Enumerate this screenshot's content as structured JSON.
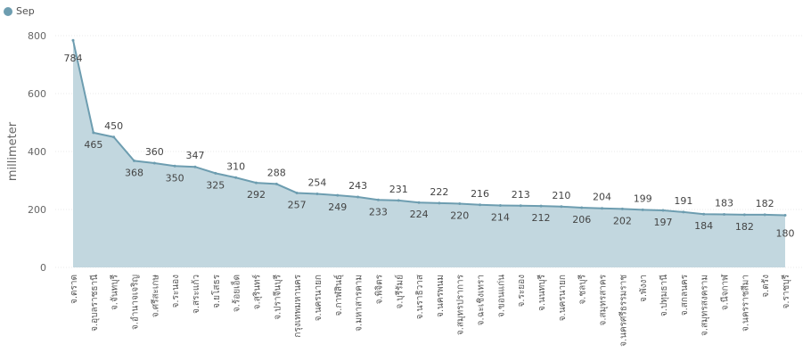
{
  "chart_data": {
    "type": "area",
    "ylabel": "millimeter",
    "ylim": [
      0,
      800
    ],
    "yticks": [
      0,
      200,
      400,
      600,
      800
    ],
    "grid": true,
    "legend_position": "top-left",
    "series": [
      {
        "name": "Sep",
        "color": "#6d9db0",
        "fill": "#c2d7df",
        "values": [
          784,
          465,
          450,
          368,
          360,
          350,
          347,
          325,
          310,
          292,
          288,
          257,
          254,
          249,
          243,
          233,
          231,
          224,
          222,
          220,
          216,
          214,
          213,
          212,
          210,
          206,
          204,
          202,
          199,
          197,
          191,
          184,
          183,
          182,
          182,
          180
        ]
      }
    ],
    "categories": [
      "จ.ตราด",
      "จ.อุบลราชธานี",
      "จ.จันทบุรี",
      "จ.อำนาจเจริญ",
      "จ.ศรีสะเกษ",
      "จ.ระนอง",
      "จ.สระแก้ว",
      "จ.ยโสธร",
      "จ.ร้อยเอ็ด",
      "จ.สุรินทร์",
      "จ.ปราจีนบุรี",
      "กรุงเทพมหานคร",
      "จ.นครนายก",
      "จ.กาฬสินธุ์",
      "จ.มหาสารคาม",
      "จ.พิจิตร",
      "จ.บุรีรัมย์",
      "จ.นราธิวาส",
      "จ.นครพนม",
      "จ.สมุทรปราการ",
      "จ.ฉะเชิงเทรา",
      "จ.ขอนแก่น",
      "จ.ระยอง",
      "จ.นนทบุรี",
      "จ.นครนายก",
      "จ.ชลบุรี",
      "จ.สมุทรสาคร",
      "จ.นครศรีธรรมราช",
      "จ.พังงา",
      "จ.ปทุมธานี",
      "จ.สกลนคร",
      "จ.สมุทรสงคราม",
      "จ.นีจกาฬ",
      "จ.นครราชสีมา",
      "จ.ตรัง",
      "จ.ราชบุรี"
    ]
  }
}
